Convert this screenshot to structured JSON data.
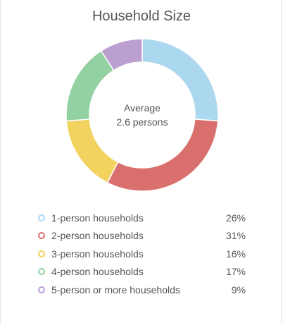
{
  "chart_data": {
    "type": "pie",
    "title": "Household Size",
    "center": {
      "line1": "Average",
      "line2": "2.6 persons"
    },
    "categories": [
      "1-person households",
      "2-person households",
      "3-person households",
      "4-person households",
      "5-person or more households"
    ],
    "values": [
      26,
      31,
      16,
      17,
      9
    ],
    "value_labels": [
      "26%",
      "31%",
      "16%",
      "17%",
      "9%"
    ],
    "colors": [
      "#acd8ef",
      "#d9706d",
      "#f2d35f",
      "#93d1a3",
      "#bc9fd1"
    ],
    "legend_placement": "bottom"
  }
}
